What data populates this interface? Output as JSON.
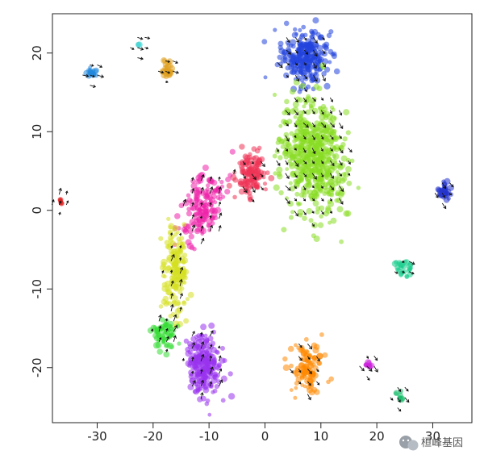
{
  "chart_data": {
    "type": "scatter",
    "title": "",
    "xlabel": "",
    "ylabel": "",
    "xlim": [
      -38,
      37
    ],
    "ylim": [
      -27,
      25
    ],
    "xticks": [
      -30,
      -20,
      -10,
      0,
      10,
      20,
      30
    ],
    "yticks": [
      -20,
      -10,
      0,
      10,
      20
    ],
    "grid": false,
    "legend": "none",
    "point_alpha": 0.55,
    "clusters": [
      {
        "name": "blue",
        "color": "#2244dd",
        "cx": 7,
        "cy": 19.5,
        "sx": 3.4,
        "sy": 2.8,
        "n": 260
      },
      {
        "name": "green",
        "color": "#88dd22",
        "cx": 8.5,
        "cy": 7,
        "sx": 4.6,
        "sy": 6.2,
        "n": 560
      },
      {
        "name": "red",
        "color": "#ee3355",
        "cx": -2.5,
        "cy": 4.5,
        "sx": 2.2,
        "sy": 2.2,
        "n": 120
      },
      {
        "name": "magenta",
        "color": "#ee22aa",
        "cx": -11,
        "cy": 0.5,
        "sx": 2.6,
        "sy": 3.4,
        "n": 150
      },
      {
        "name": "yellow",
        "color": "#d6e020",
        "cx": -16,
        "cy": -8,
        "sx": 1.7,
        "sy": 4.6,
        "n": 170
      },
      {
        "name": "lightgreen",
        "color": "#33dd33",
        "cx": -18,
        "cy": -15.5,
        "sx": 1.6,
        "sy": 1.8,
        "n": 60
      },
      {
        "name": "purple",
        "color": "#9933ee",
        "cx": -11,
        "cy": -19.5,
        "sx": 2.6,
        "sy": 3.2,
        "n": 230
      },
      {
        "name": "orange",
        "color": "#ff8800",
        "cx": 7.5,
        "cy": -20,
        "sx": 2.2,
        "sy": 2.4,
        "n": 110
      },
      {
        "name": "gold",
        "color": "#e0a020",
        "cx": -17.5,
        "cy": 18,
        "sx": 0.9,
        "sy": 1.0,
        "n": 30
      },
      {
        "name": "skyblue",
        "color": "#2288dd",
        "cx": -31,
        "cy": 17.5,
        "sx": 0.8,
        "sy": 0.6,
        "n": 20
      },
      {
        "name": "royalblue",
        "color": "#2233cc",
        "cx": 32,
        "cy": 2.5,
        "sx": 0.9,
        "sy": 1.0,
        "n": 35
      },
      {
        "name": "turquoise",
        "color": "#11cc88",
        "cx": 25,
        "cy": -7.5,
        "sx": 1.3,
        "sy": 0.8,
        "n": 25
      },
      {
        "name": "violet",
        "color": "#cc22dd",
        "cx": 18.5,
        "cy": -19.5,
        "sx": 0.6,
        "sy": 0.6,
        "n": 12
      },
      {
        "name": "darkred",
        "color": "#dd1111",
        "cx": -36.5,
        "cy": 1,
        "sx": 0.3,
        "sy": 0.4,
        "n": 6
      },
      {
        "name": "teal",
        "color": "#11bb66",
        "cx": 24,
        "cy": -23.5,
        "sx": 0.5,
        "sy": 0.5,
        "n": 8
      },
      {
        "name": "cyan",
        "color": "#22cccc",
        "cx": -22.5,
        "cy": 21,
        "sx": 0.3,
        "sy": 0.3,
        "n": 2
      }
    ],
    "velocity_arrows": {
      "color": "#111111",
      "description": "RNA velocity arrows overlaid on clusters"
    }
  },
  "watermark": {
    "text": "桓峰基因",
    "icon": "wechat-icon"
  }
}
